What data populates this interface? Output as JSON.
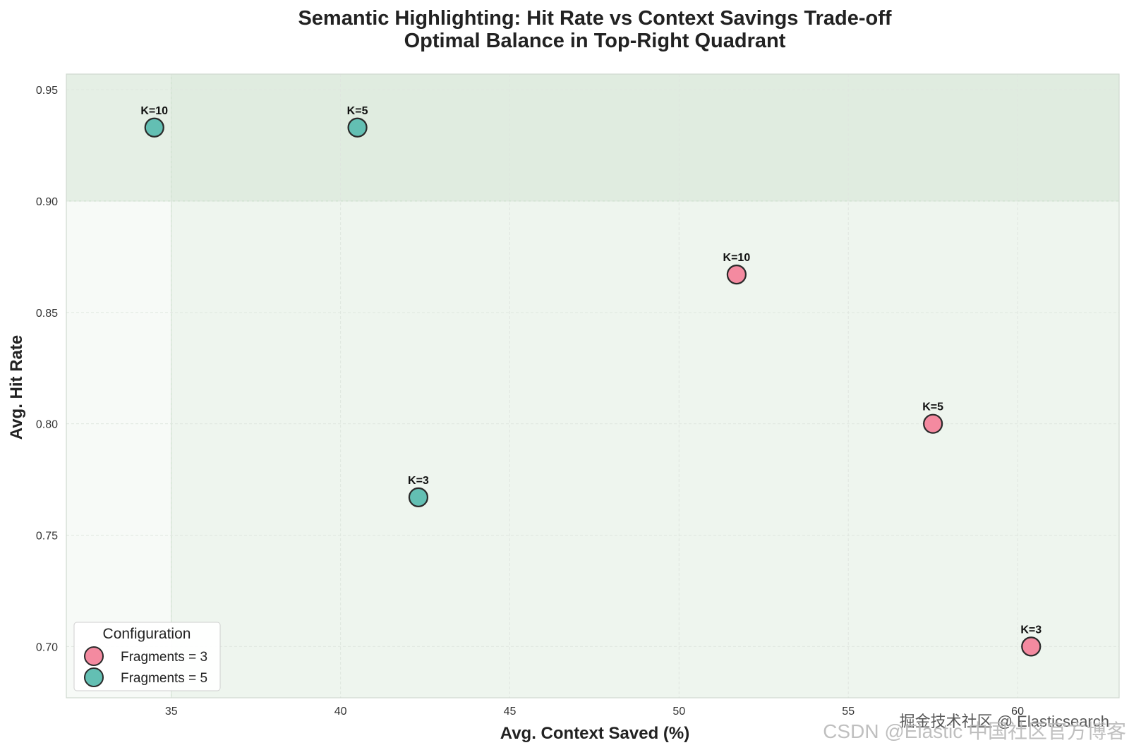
{
  "chart_data": {
    "type": "scatter",
    "title": "Semantic Highlighting: Hit Rate vs Context Savings Trade-off",
    "subtitle": "Optimal Balance in Top-Right Quadrant",
    "xlabel": "Avg. Context Saved (%)",
    "ylabel": "Avg. Hit Rate",
    "xlim": [
      31.9,
      63.0
    ],
    "ylim": [
      0.677,
      0.957
    ],
    "xticks": [
      35,
      40,
      45,
      50,
      55,
      60
    ],
    "yticks": [
      0.7,
      0.75,
      0.8,
      0.85,
      0.9,
      0.95
    ],
    "grid": true,
    "regions": [
      {
        "x": [
          35,
          63.0
        ],
        "y": [
          0.677,
          0.957
        ],
        "color": "#e3efe3",
        "opacity": 0.45
      },
      {
        "x": [
          31.9,
          63.0
        ],
        "y": [
          0.9,
          0.957
        ],
        "color": "#cfe3cf",
        "opacity": 0.45
      }
    ],
    "legend": {
      "title": "Configuration",
      "position": "lower-left"
    },
    "series": [
      {
        "name": "Fragments = 3",
        "color": "#f48aa0",
        "points": [
          {
            "x": 51.7,
            "y": 0.867,
            "label": "K=10"
          },
          {
            "x": 57.5,
            "y": 0.8,
            "label": "K=5"
          },
          {
            "x": 60.4,
            "y": 0.7,
            "label": "K=3"
          }
        ]
      },
      {
        "name": "Fragments = 5",
        "color": "#63bfb3",
        "points": [
          {
            "x": 34.5,
            "y": 0.933,
            "label": "K=10"
          },
          {
            "x": 40.5,
            "y": 0.933,
            "label": "K=5"
          },
          {
            "x": 42.3,
            "y": 0.767,
            "label": "K=3"
          }
        ]
      }
    ]
  },
  "watermark": {
    "line1": "掘金技术社区 @ Elasticsearch",
    "line2": "CSDN @Elastic 中国社区官方博客"
  }
}
